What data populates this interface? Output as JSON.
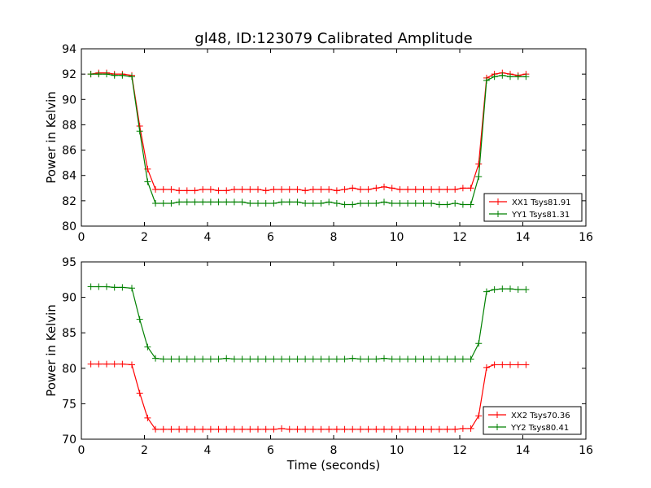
{
  "title": "gl48, ID:123079 Calibrated Amplitude",
  "chart_data": [
    {
      "type": "line",
      "xlabel": "",
      "ylabel": "Power in Kelvin",
      "xlim": [
        0,
        16
      ],
      "ylim": [
        80,
        94
      ],
      "xticks": [
        0,
        2,
        4,
        6,
        8,
        10,
        12,
        14,
        16
      ],
      "yticks": [
        80,
        82,
        84,
        86,
        88,
        90,
        92,
        94
      ],
      "legend_position": "lower-right",
      "grid": false,
      "x": [
        0.3,
        0.55,
        0.8,
        1.05,
        1.3,
        1.6,
        1.85,
        2.1,
        2.35,
        2.6,
        2.85,
        3.1,
        3.35,
        3.6,
        3.85,
        4.1,
        4.35,
        4.6,
        4.85,
        5.1,
        5.35,
        5.6,
        5.85,
        6.1,
        6.35,
        6.6,
        6.85,
        7.1,
        7.35,
        7.6,
        7.85,
        8.1,
        8.35,
        8.6,
        8.85,
        9.1,
        9.35,
        9.6,
        9.85,
        10.1,
        10.35,
        10.6,
        10.85,
        11.1,
        11.35,
        11.6,
        11.85,
        12.1,
        12.35,
        12.6,
        12.85,
        13.1,
        13.35,
        13.6,
        13.85,
        14.1
      ],
      "series": [
        {
          "name": "XX1 Tsys81.91",
          "color": "#ff0000",
          "values": [
            92.0,
            92.1,
            92.1,
            92.0,
            92.0,
            91.9,
            87.9,
            84.5,
            82.9,
            82.9,
            82.9,
            82.8,
            82.8,
            82.8,
            82.9,
            82.9,
            82.8,
            82.8,
            82.9,
            82.9,
            82.9,
            82.9,
            82.8,
            82.9,
            82.9,
            82.9,
            82.9,
            82.8,
            82.9,
            82.9,
            82.9,
            82.8,
            82.9,
            83.0,
            82.9,
            82.9,
            83.0,
            83.1,
            83.0,
            82.9,
            82.9,
            82.9,
            82.9,
            82.9,
            82.9,
            82.9,
            82.9,
            83.0,
            83.0,
            84.9,
            91.7,
            92.0,
            92.1,
            92.0,
            91.9,
            92.0
          ]
        },
        {
          "name": "YY1 Tsys81.31",
          "color": "#008000",
          "values": [
            92.0,
            92.0,
            92.0,
            91.9,
            91.9,
            91.8,
            87.5,
            83.5,
            81.8,
            81.8,
            81.8,
            81.9,
            81.9,
            81.9,
            81.9,
            81.9,
            81.9,
            81.9,
            81.9,
            81.9,
            81.8,
            81.8,
            81.8,
            81.8,
            81.9,
            81.9,
            81.9,
            81.8,
            81.8,
            81.8,
            81.9,
            81.8,
            81.7,
            81.7,
            81.8,
            81.8,
            81.8,
            81.9,
            81.8,
            81.8,
            81.8,
            81.8,
            81.8,
            81.8,
            81.7,
            81.7,
            81.8,
            81.7,
            81.7,
            83.9,
            91.5,
            91.8,
            91.9,
            91.8,
            91.8,
            91.8
          ]
        }
      ]
    },
    {
      "type": "line",
      "xlabel": "Time (seconds)",
      "ylabel": "Power in Kelvin",
      "xlim": [
        0,
        16
      ],
      "ylim": [
        70,
        95
      ],
      "xticks": [
        0,
        2,
        4,
        6,
        8,
        10,
        12,
        14,
        16
      ],
      "yticks": [
        70,
        75,
        80,
        85,
        90,
        95
      ],
      "legend_position": "lower-right",
      "grid": false,
      "x": [
        0.3,
        0.55,
        0.8,
        1.05,
        1.3,
        1.6,
        1.85,
        2.1,
        2.35,
        2.6,
        2.85,
        3.1,
        3.35,
        3.6,
        3.85,
        4.1,
        4.35,
        4.6,
        4.85,
        5.1,
        5.35,
        5.6,
        5.85,
        6.1,
        6.35,
        6.6,
        6.85,
        7.1,
        7.35,
        7.6,
        7.85,
        8.1,
        8.35,
        8.6,
        8.85,
        9.1,
        9.35,
        9.6,
        9.85,
        10.1,
        10.35,
        10.6,
        10.85,
        11.1,
        11.35,
        11.6,
        11.85,
        12.1,
        12.35,
        12.6,
        12.85,
        13.1,
        13.35,
        13.6,
        13.85,
        14.1
      ],
      "series": [
        {
          "name": "XX2 Tsys70.36",
          "color": "#ff0000",
          "values": [
            80.6,
            80.6,
            80.6,
            80.6,
            80.6,
            80.5,
            76.5,
            73.0,
            71.4,
            71.4,
            71.4,
            71.4,
            71.4,
            71.4,
            71.4,
            71.4,
            71.4,
            71.4,
            71.4,
            71.4,
            71.4,
            71.4,
            71.4,
            71.4,
            71.5,
            71.4,
            71.4,
            71.4,
            71.4,
            71.4,
            71.4,
            71.4,
            71.4,
            71.4,
            71.4,
            71.4,
            71.4,
            71.4,
            71.4,
            71.4,
            71.4,
            71.4,
            71.4,
            71.4,
            71.4,
            71.4,
            71.4,
            71.5,
            71.5,
            73.3,
            80.1,
            80.5,
            80.5,
            80.5,
            80.5,
            80.5
          ]
        },
        {
          "name": "YY2 Tsys80.41",
          "color": "#008000",
          "values": [
            91.5,
            91.5,
            91.5,
            91.4,
            91.4,
            91.3,
            86.9,
            83.0,
            81.4,
            81.3,
            81.3,
            81.3,
            81.3,
            81.3,
            81.3,
            81.3,
            81.3,
            81.4,
            81.3,
            81.3,
            81.3,
            81.3,
            81.3,
            81.3,
            81.3,
            81.3,
            81.3,
            81.3,
            81.3,
            81.3,
            81.3,
            81.3,
            81.3,
            81.4,
            81.3,
            81.3,
            81.3,
            81.4,
            81.3,
            81.3,
            81.3,
            81.3,
            81.3,
            81.3,
            81.3,
            81.3,
            81.3,
            81.3,
            81.3,
            83.5,
            90.8,
            91.1,
            91.2,
            91.2,
            91.1,
            91.1
          ]
        }
      ]
    }
  ]
}
